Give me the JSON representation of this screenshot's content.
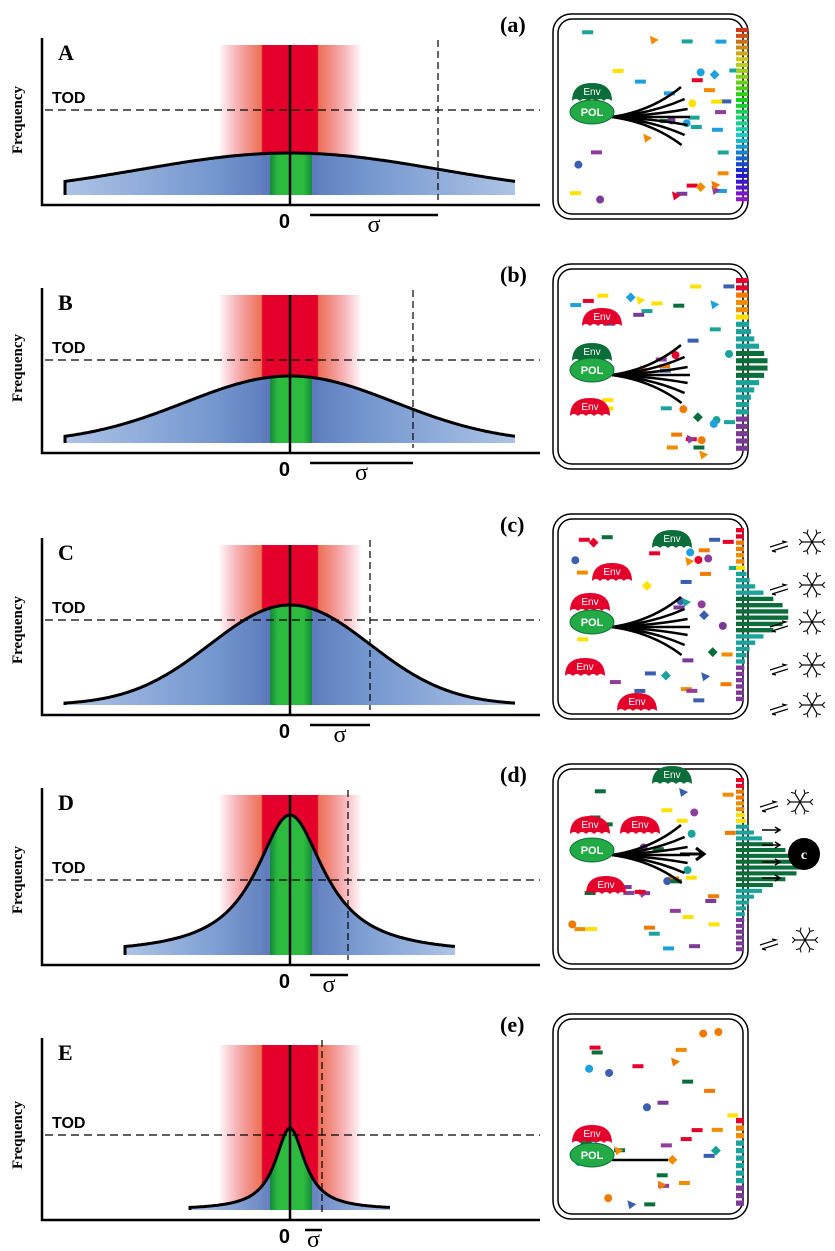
{
  "panels": [
    {
      "letter": "A",
      "y_label": "Frequency",
      "tod": "TOD",
      "zero": "0",
      "sigma": "σ",
      "cell_letter": "(a)",
      "cell_labels": [
        "Env",
        "POL"
      ]
    },
    {
      "letter": "B",
      "y_label": "Frequency",
      "tod": "TOD",
      "zero": "0",
      "sigma": "σ",
      "cell_letter": "(b)",
      "cell_labels": [
        "Env",
        "Env",
        "POL",
        "Env"
      ]
    },
    {
      "letter": "C",
      "y_label": "Frequency",
      "tod": "TOD",
      "zero": "0",
      "sigma": "σ",
      "cell_letter": "(c)",
      "cell_labels": [
        "Env",
        "Env",
        "Env",
        "POL",
        "Env",
        "Env"
      ]
    },
    {
      "letter": "D",
      "y_label": "Frequency",
      "tod": "TOD",
      "zero": "0",
      "sigma": "σ",
      "cell_letter": "(d)",
      "cell_labels": [
        "Env",
        "Env",
        "Env",
        "POL",
        "Env",
        "c"
      ]
    },
    {
      "letter": "E",
      "y_label": "Frequency",
      "tod": "TOD",
      "zero": "0",
      "sigma": "σ",
      "cell_letter": "(e)",
      "cell_labels": [
        "Env",
        "POL"
      ]
    }
  ]
}
